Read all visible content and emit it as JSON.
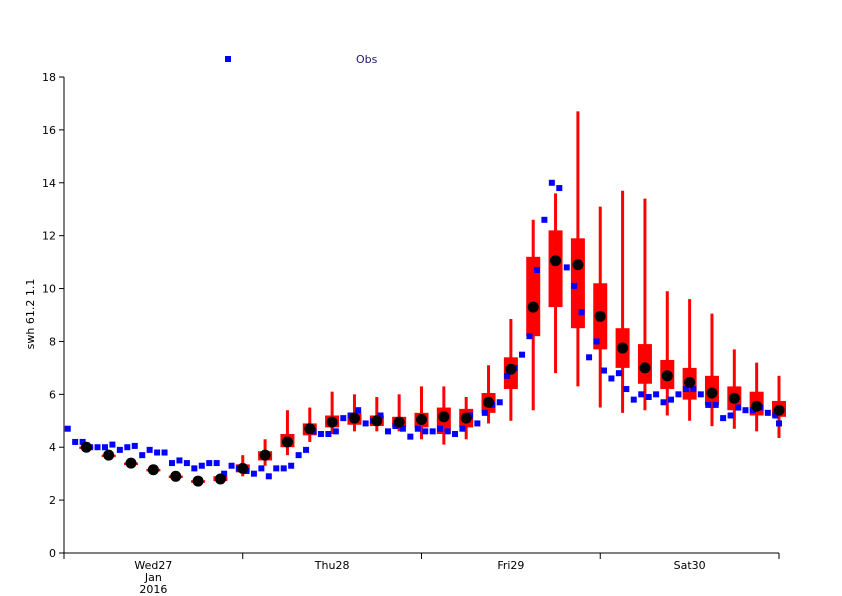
{
  "chart_data": {
    "type": "box",
    "ylabel": "swh 61.2 1.1",
    "ylim": [
      0,
      18
    ],
    "yticks": [
      0,
      2,
      4,
      6,
      8,
      10,
      12,
      14,
      16,
      18
    ],
    "xlim": [
      0,
      96
    ],
    "x_unit": "hours from 2016-01-26 12:00",
    "xtick_marks": [
      0,
      24,
      48,
      72,
      96
    ],
    "xtick_labels": [
      {
        "x": 12,
        "lines": [
          "Wed27",
          "Jan",
          "2016"
        ]
      },
      {
        "x": 36,
        "lines": [
          "Thu28"
        ]
      },
      {
        "x": 60,
        "lines": [
          "Fri29"
        ]
      },
      {
        "x": 84,
        "lines": [
          "Sat30"
        ]
      }
    ],
    "legend": {
      "entries": [
        {
          "label": "Obs",
          "color": "#0000ff",
          "marker": "square"
        }
      ],
      "placement": "top-center"
    },
    "colors": {
      "box": "#ff0000",
      "median": "#000000",
      "obs": "#0000ff"
    },
    "forecast_boxes": [
      {
        "x": 3,
        "min": 3.95,
        "q1": 3.97,
        "median": 4.0,
        "q3": 4.03,
        "max": 4.05
      },
      {
        "x": 6,
        "min": 3.65,
        "q1": 3.68,
        "median": 3.7,
        "q3": 3.72,
        "max": 3.75
      },
      {
        "x": 9,
        "min": 3.35,
        "q1": 3.38,
        "median": 3.4,
        "q3": 3.42,
        "max": 3.45
      },
      {
        "x": 12,
        "min": 3.1,
        "q1": 3.12,
        "median": 3.15,
        "q3": 3.18,
        "max": 3.2
      },
      {
        "x": 15,
        "min": 2.85,
        "q1": 2.88,
        "median": 2.9,
        "q3": 2.93,
        "max": 2.95
      },
      {
        "x": 18,
        "min": 2.68,
        "q1": 2.7,
        "median": 2.72,
        "q3": 2.75,
        "max": 2.78
      },
      {
        "x": 21,
        "min": 2.65,
        "q1": 2.72,
        "median": 2.8,
        "q3": 2.9,
        "max": 3.0
      },
      {
        "x": 24,
        "min": 2.9,
        "q1": 3.05,
        "median": 3.2,
        "q3": 3.35,
        "max": 3.7
      },
      {
        "x": 27,
        "min": 3.3,
        "q1": 3.5,
        "median": 3.7,
        "q3": 3.85,
        "max": 4.3
      },
      {
        "x": 30,
        "min": 3.7,
        "q1": 4.0,
        "median": 4.2,
        "q3": 4.5,
        "max": 5.4
      },
      {
        "x": 33,
        "min": 4.2,
        "q1": 4.45,
        "median": 4.7,
        "q3": 4.9,
        "max": 5.5
      },
      {
        "x": 36,
        "min": 4.5,
        "q1": 4.75,
        "median": 4.95,
        "q3": 5.2,
        "max": 6.1
      },
      {
        "x": 39,
        "min": 4.6,
        "q1": 4.85,
        "median": 5.1,
        "q3": 5.3,
        "max": 6.0
      },
      {
        "x": 42,
        "min": 4.6,
        "q1": 4.8,
        "median": 5.0,
        "q3": 5.2,
        "max": 5.9
      },
      {
        "x": 45,
        "min": 4.6,
        "q1": 4.75,
        "median": 4.95,
        "q3": 5.15,
        "max": 6.0
      },
      {
        "x": 48,
        "min": 4.3,
        "q1": 4.75,
        "median": 5.05,
        "q3": 5.3,
        "max": 6.3
      },
      {
        "x": 51,
        "min": 4.1,
        "q1": 4.5,
        "median": 5.15,
        "q3": 5.5,
        "max": 6.3
      },
      {
        "x": 54,
        "min": 4.3,
        "q1": 4.75,
        "median": 5.1,
        "q3": 5.45,
        "max": 5.9
      },
      {
        "x": 57,
        "min": 4.9,
        "q1": 5.3,
        "median": 5.7,
        "q3": 6.05,
        "max": 7.1
      },
      {
        "x": 60,
        "min": 5.0,
        "q1": 6.2,
        "median": 6.95,
        "q3": 7.4,
        "max": 8.85
      },
      {
        "x": 63,
        "min": 5.4,
        "q1": 8.2,
        "median": 9.3,
        "q3": 11.2,
        "max": 12.6
      },
      {
        "x": 66,
        "min": 6.8,
        "q1": 9.3,
        "median": 11.05,
        "q3": 12.2,
        "max": 13.6
      },
      {
        "x": 69,
        "min": 6.3,
        "q1": 8.5,
        "median": 10.9,
        "q3": 11.9,
        "max": 16.7
      },
      {
        "x": 72,
        "min": 5.5,
        "q1": 7.7,
        "median": 8.95,
        "q3": 10.2,
        "max": 13.1
      },
      {
        "x": 75,
        "min": 5.3,
        "q1": 7.0,
        "median": 7.75,
        "q3": 8.5,
        "max": 13.7
      },
      {
        "x": 78,
        "min": 5.4,
        "q1": 6.4,
        "median": 7.0,
        "q3": 7.9,
        "max": 13.4
      },
      {
        "x": 81,
        "min": 5.2,
        "q1": 6.2,
        "median": 6.7,
        "q3": 7.3,
        "max": 9.9
      },
      {
        "x": 84,
        "min": 5.0,
        "q1": 5.8,
        "median": 6.45,
        "q3": 7.0,
        "max": 9.6
      },
      {
        "x": 87,
        "min": 4.8,
        "q1": 5.6,
        "median": 6.05,
        "q3": 6.7,
        "max": 9.05
      },
      {
        "x": 90,
        "min": 4.7,
        "q1": 5.4,
        "median": 5.85,
        "q3": 6.3,
        "max": 7.7
      },
      {
        "x": 93,
        "min": 4.6,
        "q1": 5.2,
        "median": 5.55,
        "q3": 6.1,
        "max": 7.2
      },
      {
        "x": 96,
        "min": 4.35,
        "q1": 5.15,
        "median": 5.4,
        "q3": 5.75,
        "max": 6.7
      }
    ],
    "observations": [
      {
        "x": 0.5,
        "y": 4.7
      },
      {
        "x": 1.5,
        "y": 4.2
      },
      {
        "x": 2.5,
        "y": 4.2
      },
      {
        "x": 3.5,
        "y": 4.0
      },
      {
        "x": 4.5,
        "y": 4.0
      },
      {
        "x": 5.5,
        "y": 4.0
      },
      {
        "x": 6.5,
        "y": 4.1
      },
      {
        "x": 7.5,
        "y": 3.9
      },
      {
        "x": 8.5,
        "y": 4.0
      },
      {
        "x": 9.5,
        "y": 4.05
      },
      {
        "x": 10.5,
        "y": 3.7
      },
      {
        "x": 11.5,
        "y": 3.9
      },
      {
        "x": 12.5,
        "y": 3.8
      },
      {
        "x": 13.5,
        "y": 3.8
      },
      {
        "x": 14.5,
        "y": 3.4
      },
      {
        "x": 15.5,
        "y": 3.5
      },
      {
        "x": 16.5,
        "y": 3.4
      },
      {
        "x": 17.5,
        "y": 3.2
      },
      {
        "x": 18.5,
        "y": 3.3
      },
      {
        "x": 19.5,
        "y": 3.4
      },
      {
        "x": 20.5,
        "y": 3.4
      },
      {
        "x": 21.5,
        "y": 3.0
      },
      {
        "x": 22.5,
        "y": 3.3
      },
      {
        "x": 23.5,
        "y": 3.2
      },
      {
        "x": 24.5,
        "y": 3.1
      },
      {
        "x": 25.5,
        "y": 3.0
      },
      {
        "x": 26.5,
        "y": 3.2
      },
      {
        "x": 27.5,
        "y": 2.9
      },
      {
        "x": 28.5,
        "y": 3.2
      },
      {
        "x": 29.5,
        "y": 3.2
      },
      {
        "x": 30.5,
        "y": 3.3
      },
      {
        "x": 31.5,
        "y": 3.7
      },
      {
        "x": 32.5,
        "y": 3.9
      },
      {
        "x": 33.5,
        "y": 4.6
      },
      {
        "x": 34.5,
        "y": 4.5
      },
      {
        "x": 35.5,
        "y": 4.5
      },
      {
        "x": 36.5,
        "y": 4.6
      },
      {
        "x": 37.5,
        "y": 5.1
      },
      {
        "x": 38.5,
        "y": 5.2
      },
      {
        "x": 39.5,
        "y": 5.4
      },
      {
        "x": 40.5,
        "y": 4.9
      },
      {
        "x": 41.5,
        "y": 5.0
      },
      {
        "x": 42.5,
        "y": 5.2
      },
      {
        "x": 43.5,
        "y": 4.6
      },
      {
        "x": 44.5,
        "y": 4.8
      },
      {
        "x": 45.5,
        "y": 4.7
      },
      {
        "x": 46.5,
        "y": 4.4
      },
      {
        "x": 47.5,
        "y": 4.7
      },
      {
        "x": 48.5,
        "y": 4.6
      },
      {
        "x": 49.5,
        "y": 4.6
      },
      {
        "x": 50.5,
        "y": 4.7
      },
      {
        "x": 51.5,
        "y": 4.6
      },
      {
        "x": 52.5,
        "y": 4.5
      },
      {
        "x": 53.5,
        "y": 4.7
      },
      {
        "x": 54.5,
        "y": 5.2
      },
      {
        "x": 55.5,
        "y": 4.9
      },
      {
        "x": 56.5,
        "y": 5.3
      },
      {
        "x": 57.5,
        "y": 5.6
      },
      {
        "x": 58.5,
        "y": 5.7
      },
      {
        "x": 59.5,
        "y": 6.7
      },
      {
        "x": 60.5,
        "y": 7.0
      },
      {
        "x": 61.5,
        "y": 7.5
      },
      {
        "x": 62.5,
        "y": 8.2
      },
      {
        "x": 63.5,
        "y": 10.7
      },
      {
        "x": 64.5,
        "y": 12.6
      },
      {
        "x": 65.5,
        "y": 14.0
      },
      {
        "x": 66.5,
        "y": 13.8
      },
      {
        "x": 67.5,
        "y": 10.8
      },
      {
        "x": 68.5,
        "y": 10.1
      },
      {
        "x": 69.5,
        "y": 9.1
      },
      {
        "x": 70.5,
        "y": 7.4
      },
      {
        "x": 71.5,
        "y": 8.0
      },
      {
        "x": 72.5,
        "y": 6.9
      },
      {
        "x": 73.5,
        "y": 6.6
      },
      {
        "x": 74.5,
        "y": 6.8
      },
      {
        "x": 75.5,
        "y": 6.2
      },
      {
        "x": 76.5,
        "y": 5.8
      },
      {
        "x": 77.5,
        "y": 6.0
      },
      {
        "x": 78.5,
        "y": 5.9
      },
      {
        "x": 79.5,
        "y": 6.0
      },
      {
        "x": 80.5,
        "y": 5.7
      },
      {
        "x": 81.5,
        "y": 5.8
      },
      {
        "x": 82.5,
        "y": 6.0
      },
      {
        "x": 83.5,
        "y": 6.2
      },
      {
        "x": 84.5,
        "y": 6.2
      },
      {
        "x": 85.5,
        "y": 6.0
      },
      {
        "x": 86.5,
        "y": 5.6
      },
      {
        "x": 87.5,
        "y": 5.6
      },
      {
        "x": 88.5,
        "y": 5.1
      },
      {
        "x": 89.5,
        "y": 5.2
      },
      {
        "x": 90.5,
        "y": 5.5
      },
      {
        "x": 91.5,
        "y": 5.4
      },
      {
        "x": 92.5,
        "y": 5.4
      },
      {
        "x": 93.5,
        "y": 5.5
      },
      {
        "x": 94.5,
        "y": 5.3
      },
      {
        "x": 95.5,
        "y": 5.2
      },
      {
        "x": 96.0,
        "y": 4.9
      }
    ]
  }
}
